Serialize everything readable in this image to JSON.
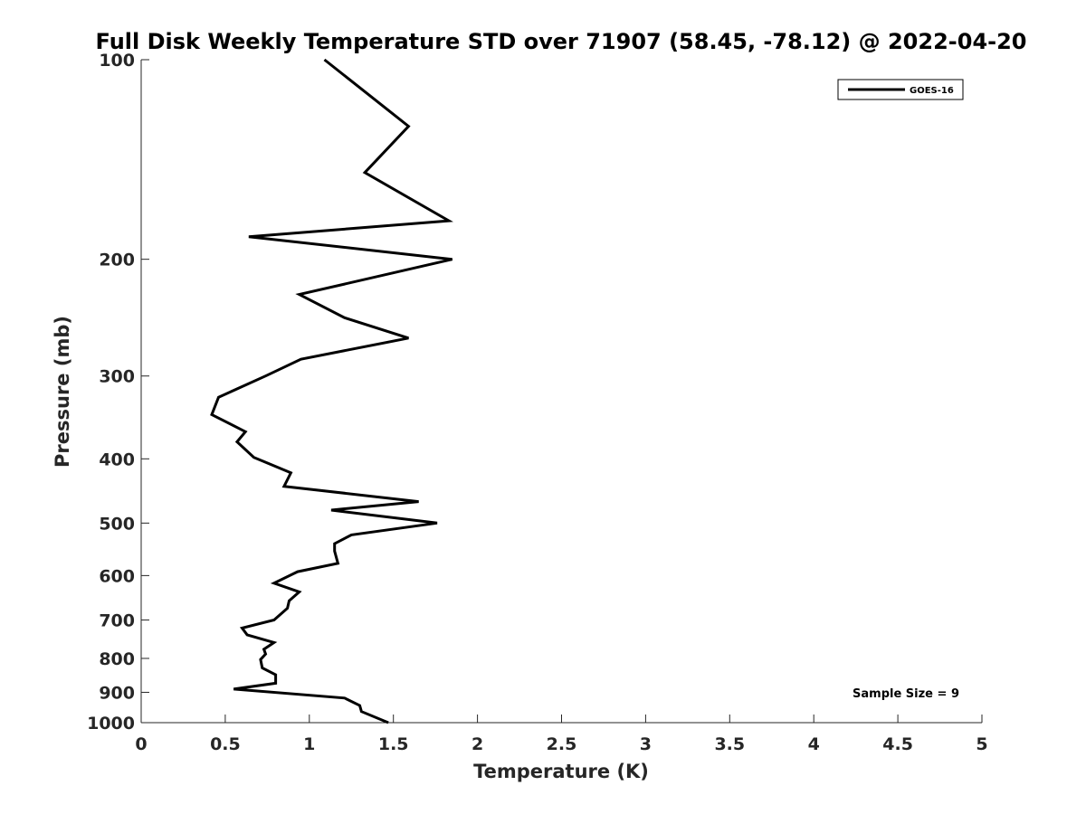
{
  "chart_data": {
    "type": "line",
    "title": "Full Disk Weekly Temperature STD over 71907 (58.45, -78.12) @ 2022-04-20",
    "xlabel": "Temperature (K)",
    "ylabel": "Pressure (mb)",
    "xlim": [
      0,
      5
    ],
    "ylim": [
      100,
      1000
    ],
    "yscale": "log",
    "y_reversed": true,
    "x_ticks": [
      0,
      0.5,
      1,
      1.5,
      2,
      2.5,
      3,
      3.5,
      4,
      4.5,
      5
    ],
    "x_tick_labels": [
      "0",
      "0.5",
      "1",
      "1.5",
      "2",
      "2.5",
      "3",
      "3.5",
      "4",
      "4.5",
      "5"
    ],
    "y_ticks": [
      100,
      200,
      300,
      400,
      500,
      600,
      700,
      800,
      900,
      1000
    ],
    "y_tick_labels": [
      "100",
      "200",
      "300",
      "400",
      "500",
      "600",
      "700",
      "800",
      "900",
      "1000"
    ],
    "grid": false,
    "legend_position": "top-right",
    "annotation": "Sample Size = 9",
    "color": "#000000",
    "series": [
      {
        "name": "GOES-16",
        "x": [
          1.09,
          1.59,
          1.33,
          1.83,
          0.64,
          1.85,
          0.94,
          1.21,
          1.59,
          0.95,
          0.74,
          0.46,
          0.42,
          0.62,
          0.57,
          0.67,
          0.89,
          0.85,
          1.65,
          1.13,
          1.76,
          1.25,
          1.15,
          1.15,
          1.17,
          0.93,
          0.79,
          0.94,
          0.88,
          0.87,
          0.79,
          0.6,
          0.63,
          0.79,
          0.73,
          0.74,
          0.71,
          0.72,
          0.8,
          0.8,
          0.55,
          1.21,
          1.3,
          1.31,
          1.47
        ],
        "y": [
          100,
          126,
          148,
          175,
          185,
          200,
          226,
          245,
          263,
          283,
          300,
          323,
          343,
          364,
          377,
          398,
          420,
          440,
          464,
          478,
          500,
          521,
          537,
          551,
          575,
          592,
          616,
          635,
          655,
          672,
          700,
          720,
          737,
          757,
          775,
          788,
          803,
          827,
          847,
          872,
          890,
          918,
          942,
          962,
          1000
        ]
      }
    ]
  }
}
